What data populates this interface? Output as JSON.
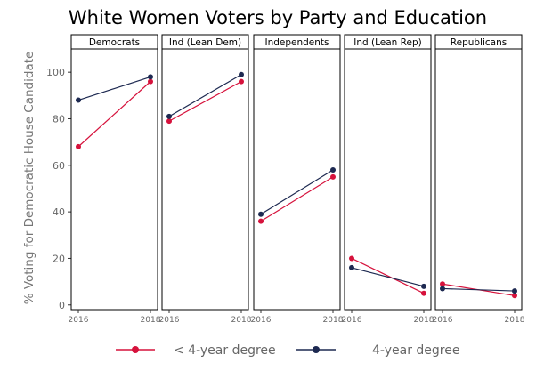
{
  "chart_data": {
    "type": "line",
    "title": "White Women Voters by Party and Education",
    "ylabel": "% Voting for Democratic House Candidate",
    "xlabel": "",
    "ylim": [
      -2,
      110
    ],
    "yticks": [
      0,
      20,
      40,
      60,
      80,
      100
    ],
    "x": [
      "2016",
      "2018"
    ],
    "panels": [
      {
        "name": "Democrats",
        "series": [
          {
            "name": "< 4-year degree",
            "values": [
              68,
              96
            ]
          },
          {
            "name": "4-year degree",
            "values": [
              88,
              98
            ]
          }
        ]
      },
      {
        "name": "Ind (Lean Dem)",
        "series": [
          {
            "name": "< 4-year degree",
            "values": [
              79,
              96
            ]
          },
          {
            "name": "4-year degree",
            "values": [
              81,
              99
            ]
          }
        ]
      },
      {
        "name": "Independents",
        "series": [
          {
            "name": "< 4-year degree",
            "values": [
              36,
              55
            ]
          },
          {
            "name": "4-year degree",
            "values": [
              39,
              58
            ]
          }
        ]
      },
      {
        "name": "Ind (Lean Rep)",
        "series": [
          {
            "name": "< 4-year degree",
            "values": [
              20,
              5
            ]
          },
          {
            "name": "4-year degree",
            "values": [
              16,
              8
            ]
          }
        ]
      },
      {
        "name": "Republicans",
        "series": [
          {
            "name": "< 4-year degree",
            "values": [
              9,
              4
            ]
          },
          {
            "name": "4-year degree",
            "values": [
              7,
              6
            ]
          }
        ]
      }
    ],
    "legend": {
      "position": "bottom",
      "entries": [
        {
          "name": "< 4-year degree",
          "color": "#d6123c"
        },
        {
          "name": "4-year degree",
          "color": "#1d2951"
        }
      ]
    },
    "grid": false
  }
}
